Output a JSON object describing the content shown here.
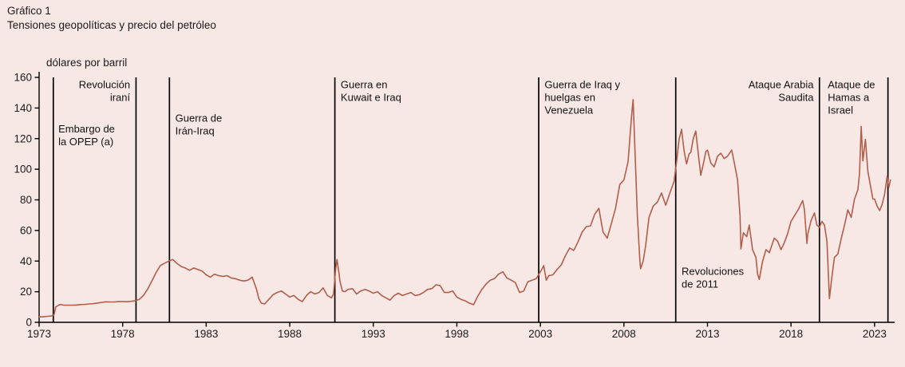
{
  "chart_data": {
    "type": "line",
    "title": "Gráfico 1",
    "subtitle": "Tensiones geopolíticas y precio del petróleo",
    "ylabel": "dólares por barril",
    "xlabel": "",
    "ylim": [
      0,
      160
    ],
    "yticks": [
      0,
      20,
      40,
      60,
      80,
      100,
      120,
      140,
      160
    ],
    "xlim": [
      1973,
      2024.2
    ],
    "xticks": [
      1973,
      1978,
      1983,
      1988,
      1993,
      1998,
      2003,
      2008,
      2013,
      2018,
      2023
    ],
    "grid": false,
    "legend": "none",
    "colors": {
      "background": "#f8e8e5",
      "line": "#b25e4b",
      "axis": "#000000",
      "text": "#1a1a1a"
    },
    "events": [
      {
        "year": 1973.85,
        "label_lines": [
          "Embargo de",
          "la OPEP (a)"
        ],
        "label_x": 1974.15,
        "label_y": 124,
        "anchor": "start"
      },
      {
        "year": 1978.8,
        "label_lines": [
          "Revolución",
          "iraní"
        ],
        "label_x": 1978.45,
        "label_y": 153,
        "anchor": "end"
      },
      {
        "year": 1980.8,
        "label_lines": [
          "Guerra de",
          "Irán-Iraq"
        ],
        "label_x": 1981.15,
        "label_y": 131,
        "anchor": "start"
      },
      {
        "year": 1990.7,
        "label_lines": [
          "Guerra en",
          "Kuwait e Iraq"
        ],
        "label_x": 1991.05,
        "label_y": 153,
        "anchor": "start"
      },
      {
        "year": 2002.9,
        "label_lines": [
          "Guerra de Iraq y",
          "huelgas en",
          "Venezuela"
        ],
        "label_x": 2003.25,
        "label_y": 153,
        "anchor": "start"
      },
      {
        "year": 2011.1,
        "label_lines": [
          "Revoluciones",
          "de 2011"
        ],
        "label_x": 2011.45,
        "label_y": 31,
        "anchor": "start"
      },
      {
        "year": 2019.7,
        "label_lines": [
          "Ataque Arabia",
          "Saudita"
        ],
        "label_x": 2019.35,
        "label_y": 153,
        "anchor": "end"
      },
      {
        "year": 2023.8,
        "label_lines": [
          "Ataque de",
          "Hamas a",
          "Israel"
        ],
        "label_x": 2020.2,
        "label_y": 153,
        "anchor": "start"
      }
    ],
    "series": [
      {
        "name": "Precio del petróleo (dólares por barril)",
        "x": [
          1973.0,
          1973.25,
          1973.5,
          1973.75,
          1973.9,
          1974.0,
          1974.25,
          1974.5,
          1974.75,
          1975.0,
          1975.25,
          1975.5,
          1975.75,
          1976.0,
          1976.25,
          1976.5,
          1976.75,
          1977.0,
          1977.25,
          1977.5,
          1977.75,
          1978.0,
          1978.25,
          1978.5,
          1978.75,
          1979.0,
          1979.25,
          1979.5,
          1979.75,
          1980.0,
          1980.25,
          1980.5,
          1980.75,
          1981.0,
          1981.25,
          1981.5,
          1981.75,
          1982.0,
          1982.25,
          1982.5,
          1982.75,
          1983.0,
          1983.25,
          1983.5,
          1983.75,
          1984.0,
          1984.25,
          1984.5,
          1984.75,
          1985.0,
          1985.25,
          1985.5,
          1985.75,
          1986.0,
          1986.15,
          1986.3,
          1986.5,
          1986.75,
          1987.0,
          1987.25,
          1987.5,
          1987.75,
          1988.0,
          1988.25,
          1988.5,
          1988.75,
          1989.0,
          1989.25,
          1989.5,
          1989.75,
          1990.0,
          1990.25,
          1990.5,
          1990.62,
          1990.75,
          1990.83,
          1990.95,
          1991.0,
          1991.15,
          1991.3,
          1991.5,
          1991.75,
          1992.0,
          1992.25,
          1992.5,
          1992.75,
          1993.0,
          1993.25,
          1993.5,
          1993.75,
          1994.0,
          1994.25,
          1994.5,
          1994.75,
          1995.0,
          1995.25,
          1995.5,
          1995.75,
          1996.0,
          1996.25,
          1996.5,
          1996.75,
          1997.0,
          1997.25,
          1997.5,
          1997.75,
          1998.0,
          1998.25,
          1998.5,
          1998.75,
          1999.0,
          1999.25,
          1999.5,
          1999.75,
          2000.0,
          2000.25,
          2000.5,
          2000.75,
          2001.0,
          2001.25,
          2001.5,
          2001.75,
          2002.0,
          2002.25,
          2002.5,
          2002.75,
          2003.0,
          2003.2,
          2003.35,
          2003.5,
          2003.75,
          2004.0,
          2004.25,
          2004.5,
          2004.75,
          2005.0,
          2005.25,
          2005.5,
          2005.75,
          2006.0,
          2006.25,
          2006.5,
          2006.75,
          2007.0,
          2007.25,
          2007.5,
          2007.75,
          2008.0,
          2008.25,
          2008.45,
          2008.55,
          2008.65,
          2008.8,
          2008.95,
          2009.0,
          2009.15,
          2009.3,
          2009.5,
          2009.75,
          2010.0,
          2010.25,
          2010.5,
          2010.75,
          2011.0,
          2011.15,
          2011.3,
          2011.45,
          2011.6,
          2011.75,
          2011.9,
          2012.0,
          2012.15,
          2012.3,
          2012.45,
          2012.6,
          2012.75,
          2012.9,
          2013.0,
          2013.2,
          2013.4,
          2013.6,
          2013.8,
          2014.0,
          2014.2,
          2014.45,
          2014.6,
          2014.8,
          2014.95,
          2015.0,
          2015.15,
          2015.35,
          2015.5,
          2015.7,
          2015.9,
          2016.0,
          2016.1,
          2016.3,
          2016.5,
          2016.7,
          2016.9,
          2017.0,
          2017.2,
          2017.4,
          2017.6,
          2017.8,
          2018.0,
          2018.2,
          2018.45,
          2018.7,
          2018.8,
          2018.95,
          2019.0,
          2019.2,
          2019.4,
          2019.55,
          2019.7,
          2019.85,
          2020.0,
          2020.15,
          2020.3,
          2020.45,
          2020.6,
          2020.8,
          2021.0,
          2021.2,
          2021.4,
          2021.6,
          2021.8,
          2022.0,
          2022.1,
          2022.2,
          2022.3,
          2022.45,
          2022.6,
          2022.75,
          2022.9,
          2023.0,
          2023.15,
          2023.3,
          2023.45,
          2023.6,
          2023.75,
          2023.85,
          2023.95
        ],
        "values": [
          3.6,
          3.6,
          3.9,
          4.2,
          5.1,
          10.1,
          11.6,
          11.2,
          11.2,
          11.2,
          11.3,
          11.6,
          11.7,
          12.0,
          12.2,
          12.6,
          13.0,
          13.4,
          13.3,
          13.3,
          13.6,
          13.6,
          13.5,
          13.7,
          14.1,
          15.0,
          17.6,
          21.8,
          27.0,
          32.5,
          37.0,
          38.5,
          40.0,
          41.0,
          38.5,
          36.5,
          35.5,
          34.0,
          35.5,
          34.5,
          33.5,
          31.0,
          29.5,
          31.5,
          30.5,
          30.0,
          30.5,
          29.0,
          28.5,
          27.5,
          27.0,
          27.5,
          29.5,
          22.0,
          15.5,
          12.5,
          12.0,
          15.0,
          18.0,
          19.5,
          20.5,
          18.5,
          16.5,
          17.5,
          15.0,
          13.5,
          17.5,
          20.0,
          18.5,
          19.5,
          22.5,
          17.5,
          16.0,
          18.5,
          35.0,
          41.0,
          32.0,
          27.0,
          20.5,
          20.0,
          21.5,
          22.0,
          18.5,
          20.5,
          21.5,
          20.5,
          19.0,
          20.0,
          17.5,
          16.0,
          14.5,
          17.5,
          19.0,
          17.5,
          18.5,
          19.5,
          17.5,
          18.0,
          19.5,
          21.5,
          22.0,
          24.5,
          24.0,
          19.5,
          19.5,
          20.5,
          16.5,
          15.0,
          14.0,
          12.5,
          11.5,
          17.0,
          21.5,
          25.0,
          27.5,
          28.5,
          31.5,
          33.0,
          29.0,
          27.5,
          26.0,
          19.5,
          20.5,
          26.5,
          27.5,
          28.5,
          33.0,
          37.0,
          27.5,
          30.5,
          31.0,
          34.5,
          37.5,
          43.5,
          48.5,
          47.0,
          52.5,
          59.0,
          62.5,
          63.0,
          70.5,
          74.5,
          59.0,
          55.0,
          64.5,
          74.5,
          90.0,
          93.0,
          105.0,
          133.5,
          145.5,
          116.0,
          70.0,
          41.0,
          35.0,
          40.0,
          50.0,
          68.5,
          76.0,
          78.5,
          84.5,
          76.5,
          84.5,
          92.0,
          105.0,
          119.5,
          126.0,
          112.0,
          103.5,
          110.0,
          111.0,
          120.0,
          125.0,
          110.0,
          96.0,
          103.5,
          111.5,
          112.5,
          104.0,
          101.5,
          108.5,
          110.5,
          107.0,
          108.5,
          112.5,
          104.5,
          93.0,
          69.5,
          48.0,
          58.5,
          56.0,
          63.5,
          47.5,
          42.5,
          31.5,
          28.0,
          40.0,
          47.5,
          45.5,
          52.0,
          55.0,
          53.0,
          47.5,
          52.0,
          58.0,
          66.0,
          69.5,
          74.0,
          79.5,
          74.0,
          51.5,
          57.5,
          66.5,
          71.5,
          63.5,
          62.0,
          66.0,
          63.5,
          53.0,
          15.5,
          30.0,
          42.5,
          44.5,
          54.5,
          63.5,
          73.5,
          68.5,
          80.5,
          86.5,
          97.0,
          128.0,
          105.5,
          119.5,
          98.5,
          89.5,
          80.5,
          80.5,
          76.0,
          73.0,
          77.0,
          83.5,
          95.5,
          88.0,
          93.0
        ]
      }
    ]
  }
}
